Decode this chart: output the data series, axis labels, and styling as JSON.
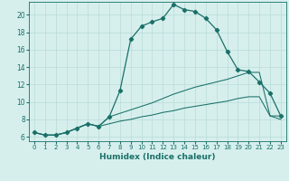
{
  "xlabel": "Humidex (Indice chaleur)",
  "background_color": "#d6efed",
  "grid_color": "#b8dbd8",
  "line_color": "#1a7068",
  "xlim": [
    -0.5,
    23.5
  ],
  "ylim": [
    5.5,
    21.5
  ],
  "xticks": [
    0,
    1,
    2,
    3,
    4,
    5,
    6,
    7,
    8,
    9,
    10,
    11,
    12,
    13,
    14,
    15,
    16,
    17,
    18,
    19,
    20,
    21,
    22,
    23
  ],
  "yticks": [
    6,
    8,
    10,
    12,
    14,
    16,
    18,
    20
  ],
  "curve1_x": [
    0,
    1,
    2,
    3,
    4,
    5,
    6,
    7,
    8,
    9,
    10,
    11,
    12,
    13,
    14,
    15,
    16,
    17,
    18,
    19,
    20,
    21,
    22,
    23
  ],
  "curve1_y": [
    6.5,
    6.2,
    6.2,
    6.5,
    7.0,
    7.5,
    7.2,
    8.3,
    11.3,
    17.2,
    18.7,
    19.2,
    19.6,
    21.2,
    20.6,
    20.4,
    19.6,
    18.3,
    15.8,
    13.7,
    13.5,
    12.3,
    11.0,
    8.4
  ],
  "curve2_x": [
    0,
    1,
    2,
    3,
    4,
    5,
    6,
    7,
    8,
    9,
    10,
    11,
    12,
    13,
    14,
    15,
    16,
    17,
    18,
    19,
    20,
    21,
    22,
    23
  ],
  "curve2_y": [
    6.5,
    6.2,
    6.2,
    6.5,
    7.0,
    7.5,
    7.2,
    8.3,
    8.7,
    9.1,
    9.5,
    9.9,
    10.4,
    10.9,
    11.3,
    11.7,
    12.0,
    12.3,
    12.6,
    13.0,
    13.4,
    13.4,
    8.4,
    8.4
  ],
  "curve3_x": [
    0,
    1,
    2,
    3,
    4,
    5,
    6,
    7,
    8,
    9,
    10,
    11,
    12,
    13,
    14,
    15,
    16,
    17,
    18,
    19,
    20,
    21,
    22,
    23
  ],
  "curve3_y": [
    6.5,
    6.2,
    6.2,
    6.5,
    7.0,
    7.5,
    7.2,
    7.5,
    7.8,
    8.0,
    8.3,
    8.5,
    8.8,
    9.0,
    9.3,
    9.5,
    9.7,
    9.9,
    10.1,
    10.4,
    10.6,
    10.6,
    8.4,
    8.0
  ]
}
